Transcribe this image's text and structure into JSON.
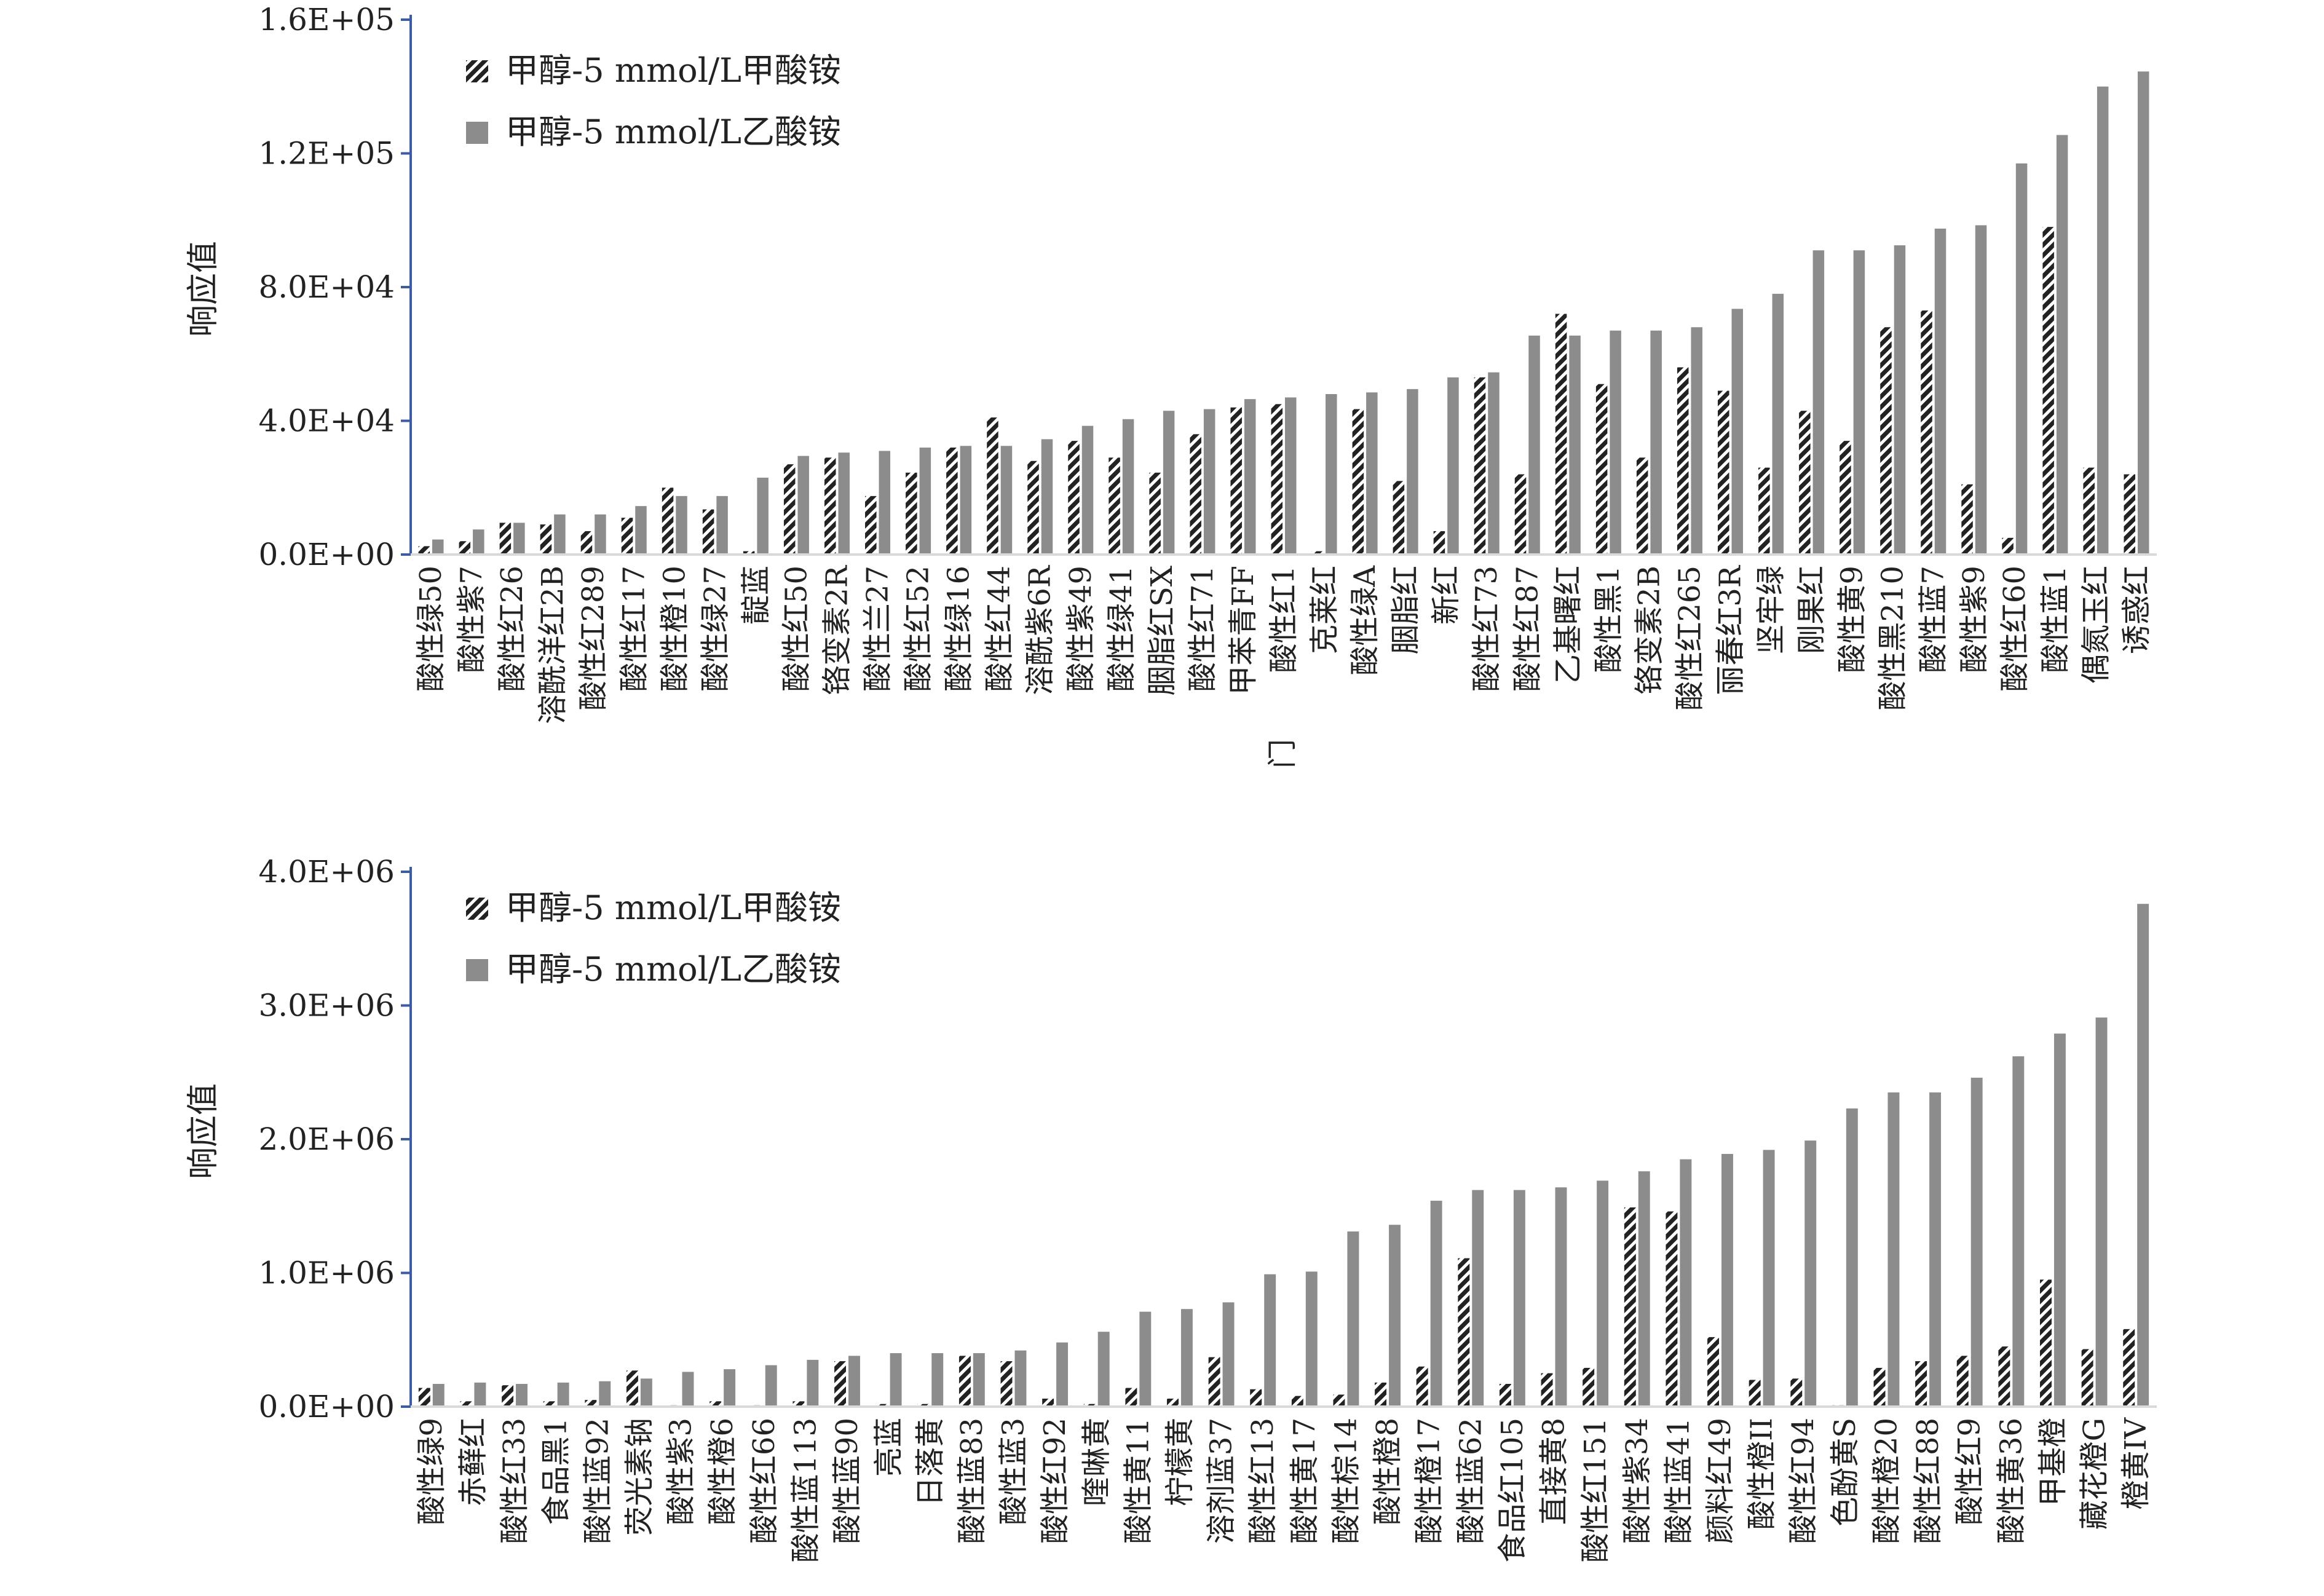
{
  "colors": {
    "axis": "#3a5ca8",
    "bar_formate": "#222222",
    "bar_acetate": "#8c8c8c",
    "text": "#222222"
  },
  "chart_data": [
    {
      "type": "bar",
      "title": "",
      "xlabel": "",
      "ylabel": "响应值",
      "ylim": [
        0,
        160000
      ],
      "yticks": [
        0,
        40000,
        80000,
        120000,
        160000
      ],
      "ytick_labels": [
        "0.0E+00",
        "4.0E+04",
        "8.0E+04",
        "1.2E+05",
        "1.6E+05"
      ],
      "legend_position": "top-left",
      "categories": [
        "酸性绿50",
        "酸性紫7",
        "酸性红26",
        "溶酰洋红2B",
        "酸性红289",
        "酸性红17",
        "酸性橙10",
        "酸性绿27",
        "靛蓝",
        "酸性红50",
        "铬变素2R",
        "酸性兰27",
        "酸性红52",
        "酸性绿16",
        "酸性红44",
        "溶酰紫6R",
        "酸性紫49",
        "酸性绿41",
        "胭脂红SX",
        "酸性红71",
        "甲苯青FF",
        "酸性红1",
        "克莱红",
        "酸性绿A",
        "胭脂红",
        "新红",
        "酸性红73",
        "酸性红87",
        "乙基曙红",
        "酸性黑1",
        "铬变素2B",
        "酸性红265",
        "丽春红3R",
        "坚牢绿",
        "刚果红",
        "酸性黄9",
        "酸性黑210",
        "酸性蓝7",
        "酸性紫9",
        "酸性红60",
        "酸性蓝1",
        "偶氮玉红",
        "诱惑红"
      ],
      "extra_labels": [
        "门"
      ],
      "series": [
        {
          "name": "甲醇-5 mmol/L甲酸铵",
          "pattern": "hatched",
          "values": [
            2500,
            4000,
            9500,
            9000,
            7000,
            11000,
            20000,
            13500,
            1000,
            27000,
            29000,
            17500,
            24500,
            32000,
            41000,
            28000,
            34000,
            29000,
            24500,
            36000,
            44000,
            45000,
            1000,
            43500,
            22000,
            7000,
            53000,
            24000,
            72000,
            51000,
            29000,
            56000,
            49000,
            26000,
            43000,
            34000,
            68000,
            73000,
            21000,
            5000,
            98000,
            26000,
            24000
          ]
        },
        {
          "name": "甲醇-5 mmol/L乙酸铵",
          "pattern": "solid",
          "values": [
            4500,
            7500,
            9500,
            12000,
            12000,
            14500,
            17500,
            17500,
            23000,
            29500,
            30500,
            31000,
            32000,
            32500,
            32500,
            34500,
            38500,
            40500,
            43000,
            43500,
            46500,
            47000,
            48000,
            48500,
            49500,
            53000,
            54500,
            65500,
            65500,
            67000,
            67000,
            68000,
            73500,
            78000,
            91000,
            91000,
            92500,
            97500,
            98500,
            117000,
            125500,
            140000,
            144500
          ]
        }
      ]
    },
    {
      "type": "bar",
      "title": "",
      "xlabel": "",
      "ylabel": "响应值",
      "ylim": [
        0,
        4000000
      ],
      "yticks": [
        0,
        1000000,
        2000000,
        3000000,
        4000000
      ],
      "ytick_labels": [
        "0.0E+00",
        "1.0E+06",
        "2.0E+06",
        "3.0E+06",
        "4.0E+06"
      ],
      "legend_position": "top-left",
      "categories": [
        "酸性绿9",
        "赤藓红",
        "酸性红33",
        "食品黑1",
        "酸性蓝92",
        "荧光素钠",
        "酸性紫3",
        "酸性橙6",
        "酸性红66",
        "酸性蓝113",
        "酸性蓝90",
        "亮蓝",
        "日落黄",
        "酸性蓝83",
        "酸性蓝3",
        "酸性红92",
        "喹啉黄",
        "酸性黄11",
        "柠檬黄",
        "溶剂蓝37",
        "酸性红13",
        "酸性黄17",
        "酸性棕14",
        "酸性橙8",
        "酸性橙17",
        "酸性蓝62",
        "食品红105",
        "直接黄8",
        "酸性红151",
        "酸性紫34",
        "酸性蓝41",
        "颜料红49",
        "酸性橙II",
        "酸性红94",
        "色酚黄S",
        "酸性橙20",
        "酸性红88",
        "酸性红9",
        "酸性黄36",
        "甲基橙",
        "藏花橙G",
        "橙黄IV"
      ],
      "extra_labels": [],
      "series": [
        {
          "name": "甲醇-5 mmol/L甲酸铵",
          "pattern": "hatched",
          "values": [
            140000,
            40000,
            160000,
            40000,
            50000,
            270000,
            10000,
            40000,
            10000,
            40000,
            340000,
            20000,
            20000,
            380000,
            340000,
            60000,
            20000,
            140000,
            60000,
            370000,
            130000,
            80000,
            90000,
            180000,
            300000,
            1110000,
            170000,
            250000,
            290000,
            1490000,
            1460000,
            520000,
            200000,
            210000,
            10000,
            290000,
            340000,
            380000,
            450000,
            950000,
            430000,
            580000
          ]
        },
        {
          "name": "甲醇-5 mmol/L乙酸铵",
          "pattern": "solid",
          "values": [
            170000,
            180000,
            170000,
            180000,
            190000,
            210000,
            260000,
            280000,
            310000,
            350000,
            380000,
            400000,
            400000,
            400000,
            420000,
            480000,
            560000,
            710000,
            730000,
            780000,
            990000,
            1010000,
            1310000,
            1360000,
            1540000,
            1620000,
            1620000,
            1640000,
            1690000,
            1760000,
            1850000,
            1890000,
            1920000,
            1990000,
            2230000,
            2350000,
            2350000,
            2460000,
            2620000,
            2790000,
            2910000,
            3760000
          ]
        }
      ]
    }
  ]
}
